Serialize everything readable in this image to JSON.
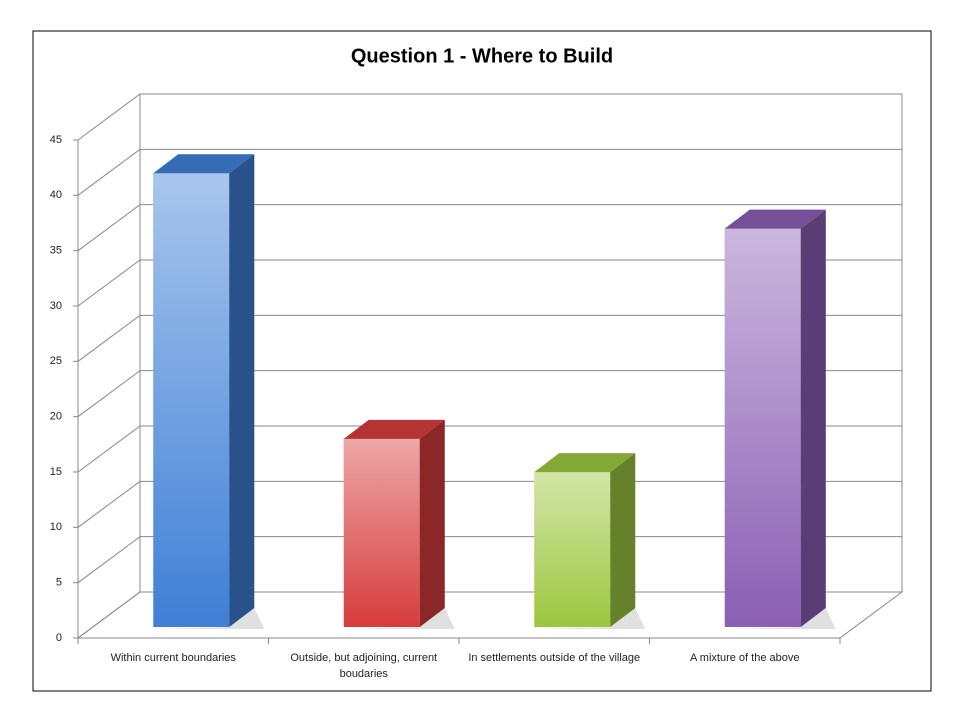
{
  "chart_data": {
    "type": "bar3d",
    "title": "Question 1 - Where to Build",
    "categories": [
      "Within current boundaries",
      "Outside, but adjoining, current boudaries",
      "In settlements outside of the village",
      "A mixture of the above"
    ],
    "values": [
      41,
      17,
      14,
      36
    ],
    "colors": [
      "#3f7fd6",
      "#d63c3c",
      "#9cc63f",
      "#8a5fb4"
    ],
    "ylim": [
      0,
      45
    ],
    "yticks": [
      0,
      5,
      10,
      15,
      20,
      25,
      30,
      35,
      40,
      45
    ],
    "grid": true
  }
}
